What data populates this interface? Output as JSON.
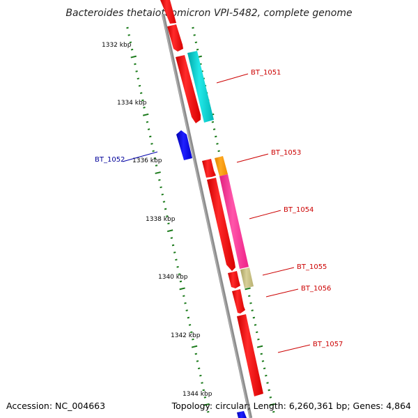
{
  "title": "Bacteroides thetaiotaomicron VPI-5482, complete genome",
  "footer": {
    "accession": "Accession: NC_004663",
    "topology": "Topology: circular; Length: 6,260,361 bp; Genes: 4,864"
  },
  "ruler": {
    "labels": [
      "1332 kbp",
      "1334 kbp",
      "1336 kbp",
      "1338 kbp",
      "1340 kbp",
      "1342 kbp",
      "1344 kbp"
    ]
  },
  "colors": {
    "backbone": "#808080",
    "tick": "#1a7a1a",
    "forward_gene": "#ff0000",
    "reverse_gene": "#0000ff",
    "label_forward": "#cc0000",
    "label_reverse": "#000099"
  },
  "genes": [
    {
      "id": "g0",
      "strand": "forward",
      "color": "#ff0000",
      "label": ""
    },
    {
      "id": "g1",
      "strand": "forward",
      "color": "#ff0000",
      "label": ""
    },
    {
      "id": "g2",
      "strand": "forward",
      "color": "#ff0000",
      "label": ""
    },
    {
      "id": "BT_1051",
      "strand": "forward",
      "color": "#00cccc",
      "label": "BT_1051"
    },
    {
      "id": "BT_1052",
      "strand": "reverse",
      "color": "#0000ff",
      "label": "BT_1052"
    },
    {
      "id": "BT_1053",
      "strand": "forward",
      "color": "#ff9900",
      "label": "BT_1053"
    },
    {
      "id": "g5",
      "strand": "forward",
      "color": "#ff0000",
      "label": ""
    },
    {
      "id": "g6",
      "strand": "forward",
      "color": "#ff0000",
      "label": ""
    },
    {
      "id": "BT_1054",
      "strand": "forward",
      "color": "#ff3399",
      "label": "BT_1054"
    },
    {
      "id": "BT_1055",
      "strand": "forward",
      "color": "#c8c080",
      "label": "BT_1055"
    },
    {
      "id": "g7",
      "strand": "forward",
      "color": "#ff0000",
      "label": ""
    },
    {
      "id": "BT_1056",
      "strand": "forward",
      "color": "#ff0000",
      "label": "BT_1056"
    },
    {
      "id": "BT_1057",
      "strand": "forward",
      "color": "#ff0000",
      "label": "BT_1057"
    },
    {
      "id": "g9",
      "strand": "reverse",
      "color": "#0000ff",
      "label": ""
    }
  ]
}
